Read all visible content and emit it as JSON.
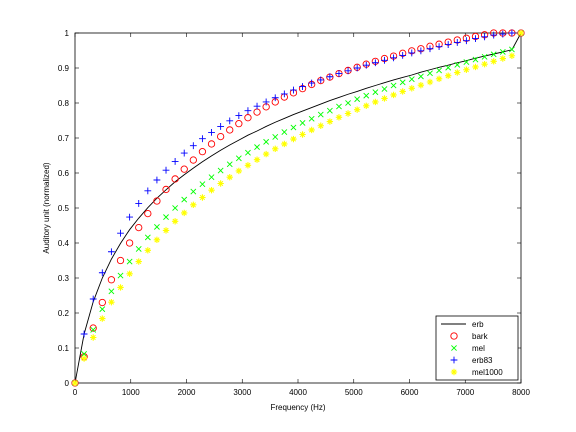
{
  "chart_data": {
    "type": "line",
    "xlabel": "Frequency (Hz)",
    "ylabel": "Auditory unit (normalized)",
    "xlim": [
      0,
      8000
    ],
    "ylim": [
      0,
      1
    ],
    "xticks": [
      "0",
      "1000",
      "2000",
      "3000",
      "4000",
      "5000",
      "6000",
      "7000",
      "8000"
    ],
    "yticks": [
      "0",
      "0.1",
      "0.2",
      "0.3",
      "0.4",
      "0.5",
      "0.6",
      "0.7",
      "0.8",
      "0.9",
      "1"
    ],
    "grid": false,
    "legend_position": "bottom-right",
    "x": [
      0,
      163.27,
      326.53,
      489.8,
      653.06,
      816.33,
      979.59,
      1142.86,
      1306.12,
      1469.39,
      1632.65,
      1795.92,
      1959.18,
      2122.45,
      2285.71,
      2448.98,
      2612.24,
      2775.51,
      2938.78,
      3102.04,
      3265.31,
      3428.57,
      3591.84,
      3755.1,
      3918.37,
      4081.63,
      4244.9,
      4408.16,
      4571.43,
      4734.69,
      4897.96,
      5061.22,
      5224.49,
      5387.76,
      5551.02,
      5714.29,
      5877.55,
      6040.82,
      6204.08,
      6367.35,
      6530.61,
      6693.88,
      6857.14,
      7020.41,
      7183.67,
      7346.94,
      7510.2,
      7673.47,
      7836.73,
      8000
    ],
    "series": [
      {
        "name": "erb",
        "marker": "line",
        "color": "#000000",
        "values": [
          0,
          0.14,
          0.232,
          0.3,
          0.354,
          0.399,
          0.438,
          0.471,
          0.501,
          0.528,
          0.552,
          0.575,
          0.595,
          0.614,
          0.632,
          0.649,
          0.665,
          0.68,
          0.694,
          0.708,
          0.72,
          0.733,
          0.745,
          0.756,
          0.767,
          0.777,
          0.787,
          0.797,
          0.807,
          0.816,
          0.825,
          0.833,
          0.842,
          0.85,
          0.858,
          0.866,
          0.873,
          0.88,
          0.888,
          0.895,
          0.902,
          0.908,
          0.915,
          0.921,
          0.928,
          0.934,
          0.94,
          0.946,
          0.952,
          1.0
        ]
      },
      {
        "name": "bark",
        "marker": "circle",
        "color": "#ff0000",
        "values": [
          0,
          0.075,
          0.157,
          0.23,
          0.295,
          0.35,
          0.4,
          0.444,
          0.484,
          0.52,
          0.553,
          0.583,
          0.611,
          0.637,
          0.661,
          0.683,
          0.704,
          0.723,
          0.741,
          0.758,
          0.774,
          0.789,
          0.803,
          0.817,
          0.829,
          0.841,
          0.853,
          0.864,
          0.874,
          0.884,
          0.893,
          0.902,
          0.911,
          0.919,
          0.927,
          0.934,
          0.942,
          0.949,
          0.955,
          0.962,
          0.968,
          0.974,
          0.98,
          0.985,
          0.99,
          0.995,
          1.0,
          1.0,
          1.0,
          1.0
        ]
      },
      {
        "name": "mel",
        "marker": "x",
        "color": "#00ff00",
        "values": [
          0,
          0.083,
          0.152,
          0.211,
          0.262,
          0.307,
          0.347,
          0.383,
          0.416,
          0.446,
          0.474,
          0.5,
          0.524,
          0.547,
          0.568,
          0.588,
          0.607,
          0.625,
          0.642,
          0.658,
          0.674,
          0.689,
          0.703,
          0.717,
          0.73,
          0.743,
          0.755,
          0.767,
          0.778,
          0.79,
          0.8,
          0.811,
          0.821,
          0.831,
          0.84,
          0.85,
          0.859,
          0.868,
          0.876,
          0.885,
          0.893,
          0.901,
          0.909,
          0.917,
          0.924,
          0.932,
          0.939,
          0.946,
          0.953,
          1.0
        ]
      },
      {
        "name": "erb83",
        "marker": "plus",
        "color": "#0000ff",
        "values": [
          0,
          0.14,
          0.24,
          0.315,
          0.375,
          0.428,
          0.474,
          0.513,
          0.549,
          0.58,
          0.608,
          0.633,
          0.657,
          0.678,
          0.698,
          0.716,
          0.733,
          0.749,
          0.764,
          0.778,
          0.791,
          0.803,
          0.815,
          0.826,
          0.837,
          0.847,
          0.857,
          0.866,
          0.875,
          0.884,
          0.892,
          0.9,
          0.908,
          0.915,
          0.922,
          0.929,
          0.936,
          0.943,
          0.949,
          0.955,
          0.961,
          0.967,
          0.973,
          0.978,
          0.984,
          0.989,
          0.994,
          0.997,
          1.0,
          1.0
        ]
      },
      {
        "name": "mel1000",
        "marker": "star",
        "color": "#ffff00",
        "values": [
          0,
          0.07,
          0.13,
          0.184,
          0.231,
          0.273,
          0.312,
          0.347,
          0.379,
          0.409,
          0.436,
          0.462,
          0.486,
          0.509,
          0.53,
          0.551,
          0.57,
          0.588,
          0.606,
          0.622,
          0.638,
          0.654,
          0.669,
          0.683,
          0.697,
          0.71,
          0.723,
          0.735,
          0.747,
          0.759,
          0.77,
          0.781,
          0.792,
          0.803,
          0.813,
          0.823,
          0.833,
          0.842,
          0.851,
          0.86,
          0.869,
          0.878,
          0.887,
          0.895,
          0.903,
          0.911,
          0.919,
          0.927,
          0.935,
          1.0
        ]
      }
    ]
  }
}
